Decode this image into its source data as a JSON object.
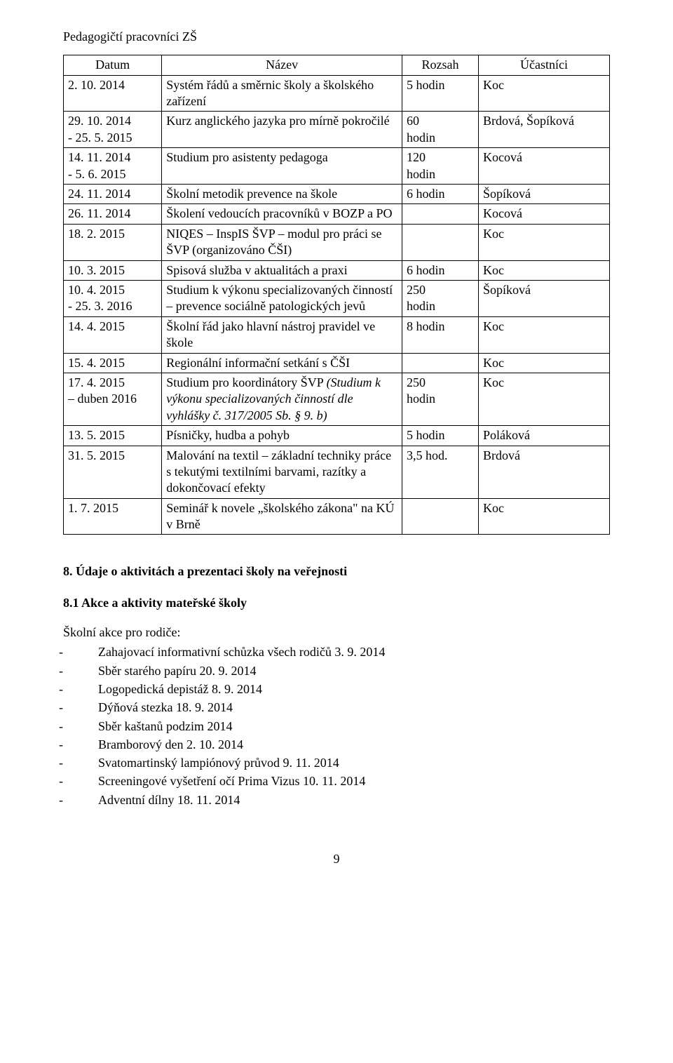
{
  "title": "Pedagogičtí pracovníci ZŠ",
  "table": {
    "headers": [
      "Datum",
      "Název",
      "Rozsah",
      "Účastníci"
    ],
    "rows": [
      {
        "date": "2. 10. 2014",
        "name": "Systém řádů a směrnic školy a školského zařízení",
        "extent": "5 hodin",
        "participants": "Koc"
      },
      {
        "date": "29. 10. 2014\n- 25. 5. 2015",
        "name": "Kurz anglického jazyka pro mírně pokročilé",
        "extent": "60\nhodin",
        "participants": "Brdová, Šopíková"
      },
      {
        "date": "14. 11. 2014\n- 5. 6. 2015",
        "name": "Studium pro asistenty pedagoga",
        "extent": "120\nhodin",
        "participants": "Kocová"
      },
      {
        "date": "24. 11. 2014",
        "name": "Školní metodik prevence na škole",
        "extent": "6 hodin",
        "participants": "Šopíková"
      },
      {
        "date": "26. 11. 2014",
        "name": "Školení vedoucích pracovníků v BOZP a PO",
        "extent": "",
        "participants": "Kocová"
      },
      {
        "date": "18. 2. 2015",
        "name": "NIQES – InspIS ŠVP – modul pro práci se ŠVP (organizováno ČŠI)",
        "extent": "",
        "participants": "Koc"
      },
      {
        "date": "10. 3. 2015",
        "name": "Spisová služba v aktualitách a praxi",
        "extent": "6 hodin",
        "participants": "Koc"
      },
      {
        "date": "10. 4. 2015\n- 25. 3. 2016",
        "name": "Studium k výkonu specializovaných činností – prevence sociálně patologických jevů",
        "extent": "250\nhodin",
        "participants": "Šopíková"
      },
      {
        "date": "14. 4. 2015",
        "name": "Školní řád jako hlavní nástroj pravidel ve škole",
        "extent": "8 hodin",
        "participants": "Koc"
      },
      {
        "date": "15. 4. 2015",
        "name": "Regionální informační setkání s ČŠI",
        "extent": "",
        "participants": "Koc"
      },
      {
        "date": "17. 4. 2015\n– duben 2016",
        "name_pre": "Studium pro koordinátory ŠVP ",
        "name_italic": "(Studium k výkonu specializovaných činností dle vyhlášky č. 317/2005 Sb. § 9. b)",
        "extent": "250\nhodin",
        "participants": "Koc",
        "has_italic": true
      },
      {
        "date": "13. 5. 2015",
        "name": "Písničky, hudba a pohyb",
        "extent": "5 hodin",
        "participants": "Poláková"
      },
      {
        "date": "31. 5. 2015",
        "name": "Malování na textil – základní techniky práce s tekutými textilními barvami, razítky a dokončovací efekty",
        "extent": "3,5 hod.",
        "participants": "Brdová"
      },
      {
        "date": "1. 7. 2015",
        "name": "Seminář k novele „školského zákona\" na KÚ v Brně",
        "extent": "",
        "participants": "Koc"
      }
    ]
  },
  "section_heading": "8. Údaje o aktivitách a prezentaci školy na veřejnosti",
  "sub_heading": "8.1 Akce a aktivity mateřské školy",
  "list_intro": "Školní akce pro rodiče:",
  "list_items": [
    "Zahajovací informativní schůzka všech rodičů 3. 9. 2014",
    "Sběr starého papíru 20. 9. 2014",
    "Logopedická depistáž 8. 9. 2014",
    "Dýňová stezka 18. 9. 2014",
    "Sběr kaštanů podzim 2014",
    "Bramborový den 2. 10. 2014",
    "Svatomartinský lampiónový průvod 9. 11. 2014",
    "Screeningové vyšetření očí Prima Vizus 10. 11. 2014",
    "Adventní dílny 18. 11. 2014"
  ],
  "page_number": "9"
}
